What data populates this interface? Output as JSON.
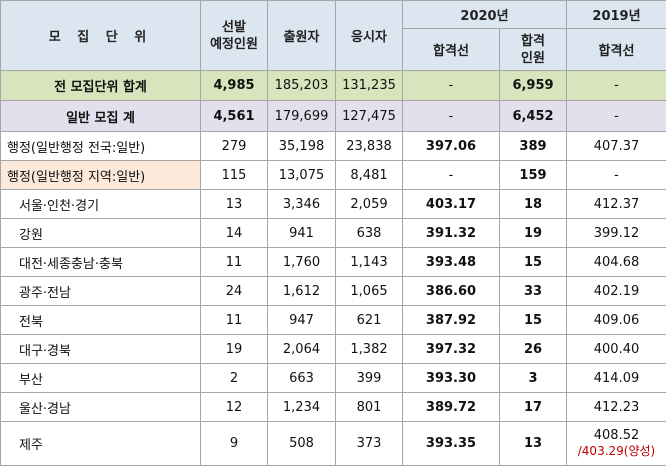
{
  "header": {
    "unit": "모 집 단 위",
    "planned": "선발\n예정인원",
    "applicants": "출원자",
    "test_takers": "응시자",
    "year_2020": "2020년",
    "year_2019": "2019년",
    "cutoff_2020": "합격선",
    "passers_2020": "합격\n인원",
    "cutoff_2019": "합격선"
  },
  "rows": [
    {
      "name": "전 모집단위 합계",
      "planned": "4,985",
      "applicants": "185,203",
      "test_takers": "131,235",
      "cutoff_2020": "-",
      "passers_2020": "6,959",
      "cutoff_2019": "-"
    },
    {
      "name": "일반 모집 계",
      "planned": "4,561",
      "applicants": "179,699",
      "test_takers": "127,475",
      "cutoff_2020": "-",
      "passers_2020": "6,452",
      "cutoff_2019": "-"
    },
    {
      "name": "행정(일반행정 전국:일반)",
      "planned": "279",
      "applicants": "35,198",
      "test_takers": "23,838",
      "cutoff_2020": "397.06",
      "passers_2020": "389",
      "cutoff_2019": "407.37"
    },
    {
      "name": "행정(일반행정 지역:일반)",
      "planned": "115",
      "applicants": "13,075",
      "test_takers": "8,481",
      "cutoff_2020": "-",
      "passers_2020": "159",
      "cutoff_2019": "-"
    },
    {
      "name": "서울·인천·경기",
      "planned": "13",
      "applicants": "3,346",
      "test_takers": "2,059",
      "cutoff_2020": "403.17",
      "passers_2020": "18",
      "cutoff_2019": "412.37"
    },
    {
      "name": "강원",
      "planned": "14",
      "applicants": "941",
      "test_takers": "638",
      "cutoff_2020": "391.32",
      "passers_2020": "19",
      "cutoff_2019": "399.12"
    },
    {
      "name": "대전·세종충남·충북",
      "planned": "11",
      "applicants": "1,760",
      "test_takers": "1,143",
      "cutoff_2020": "393.48",
      "passers_2020": "15",
      "cutoff_2019": "404.68"
    },
    {
      "name": "광주·전남",
      "planned": "24",
      "applicants": "1,612",
      "test_takers": "1,065",
      "cutoff_2020": "386.60",
      "passers_2020": "33",
      "cutoff_2019": "402.19"
    },
    {
      "name": "전북",
      "planned": "11",
      "applicants": "947",
      "test_takers": "621",
      "cutoff_2020": "387.92",
      "passers_2020": "15",
      "cutoff_2019": "409.06"
    },
    {
      "name": "대구·경북",
      "planned": "19",
      "applicants": "2,064",
      "test_takers": "1,382",
      "cutoff_2020": "397.32",
      "passers_2020": "26",
      "cutoff_2019": "400.40"
    },
    {
      "name": "부산",
      "planned": "2",
      "applicants": "663",
      "test_takers": "399",
      "cutoff_2020": "393.30",
      "passers_2020": "3",
      "cutoff_2019": "414.09"
    },
    {
      "name": "울산·경남",
      "planned": "12",
      "applicants": "1,234",
      "test_takers": "801",
      "cutoff_2020": "389.72",
      "passers_2020": "17",
      "cutoff_2019": "412.23"
    },
    {
      "name": "제주",
      "planned": "9",
      "applicants": "508",
      "test_takers": "373",
      "cutoff_2020": "393.35",
      "passers_2020": "13",
      "cutoff_2019": "408.52",
      "cutoff_2019_note": "/403.29(양성)"
    }
  ]
}
